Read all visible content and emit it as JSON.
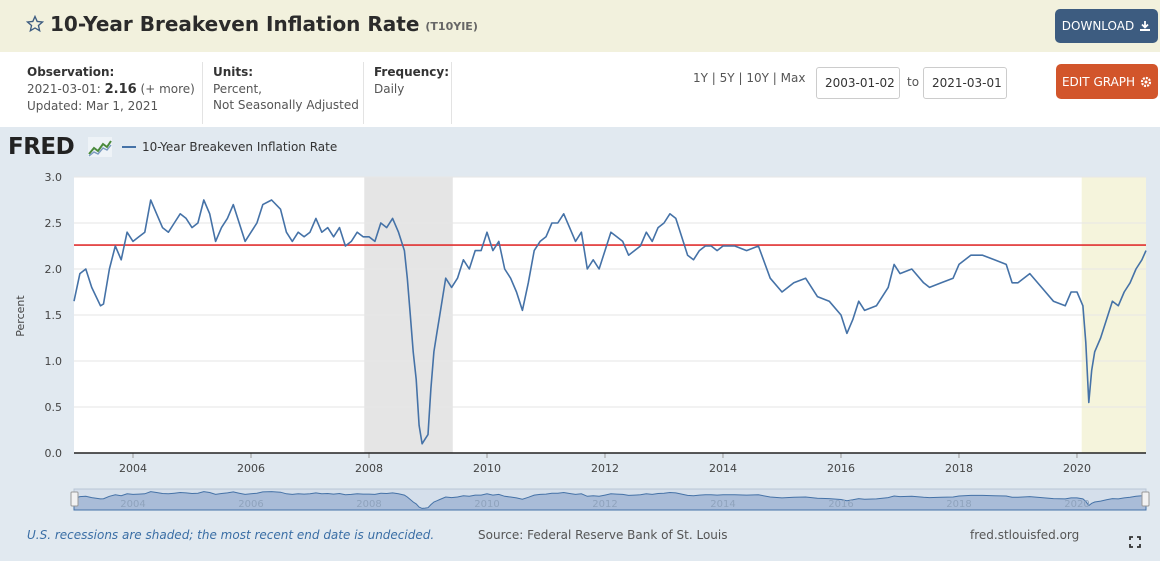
{
  "header": {
    "title": "10-Year Breakeven Inflation Rate",
    "series_id": "(T10YIE)",
    "download_label": "DOWNLOAD"
  },
  "meta": {
    "observation_label": "Observation:",
    "observation_date": "2021-03-01:",
    "observation_value": "2.16",
    "observation_more": "(+ more)",
    "updated": "Updated: Mar 1, 2021",
    "units_label": "Units:",
    "units_line1": "Percent,",
    "units_line2": "Not Seasonally Adjusted",
    "frequency_label": "Frequency:",
    "frequency_value": "Daily"
  },
  "controls": {
    "range_1y": "1Y",
    "range_5y": "5Y",
    "range_10y": "10Y",
    "range_max": "Max",
    "sep": "|",
    "start_date": "2003-01-02",
    "to_label": "to",
    "end_date": "2021-03-01",
    "edit_label": "EDIT GRAPH"
  },
  "logo_text": "FRED",
  "footer": {
    "recession_note": "U.S. recessions are shaded; the most recent end date is undecided.",
    "source": "Source: Federal Reserve Bank of St. Louis",
    "site": "fred.stlouisfed.org"
  },
  "colors": {
    "series": "#4572a7",
    "reference_line": "#e03030",
    "recession": "#e5e5e5",
    "recession_recent": "#f5f4dc"
  },
  "chart_data": {
    "type": "line",
    "title": "",
    "ylabel": "Percent",
    "xlabel": "",
    "ylim": [
      0,
      3.0
    ],
    "xlim": [
      2003.0,
      2021.17
    ],
    "y_ticks": [
      "0.0",
      "0.5",
      "1.0",
      "1.5",
      "2.0",
      "2.5",
      "3.0"
    ],
    "x_ticks": [
      "2004",
      "2006",
      "2008",
      "2010",
      "2012",
      "2014",
      "2016",
      "2018",
      "2020"
    ],
    "grid": true,
    "legend": "top-left",
    "reference_line": 2.26,
    "recessions": [
      {
        "start": 2007.92,
        "end": 2009.42
      },
      {
        "start": 2020.08,
        "end": 2021.17
      }
    ],
    "series": [
      {
        "name": "10-Year Breakeven Inflation Rate",
        "x": [
          2003.0,
          2003.1,
          2003.2,
          2003.3,
          2003.45,
          2003.5,
          2003.6,
          2003.7,
          2003.8,
          2003.9,
          2004.0,
          2004.1,
          2004.2,
          2004.3,
          2004.4,
          2004.5,
          2004.6,
          2004.7,
          2004.8,
          2004.9,
          2005.0,
          2005.1,
          2005.2,
          2005.3,
          2005.4,
          2005.5,
          2005.6,
          2005.7,
          2005.8,
          2005.9,
          2006.0,
          2006.1,
          2006.2,
          2006.35,
          2006.5,
          2006.6,
          2006.7,
          2006.8,
          2006.9,
          2007.0,
          2007.1,
          2007.2,
          2007.3,
          2007.4,
          2007.5,
          2007.6,
          2007.7,
          2007.8,
          2007.9,
          2008.0,
          2008.1,
          2008.2,
          2008.3,
          2008.4,
          2008.5,
          2008.6,
          2008.65,
          2008.7,
          2008.75,
          2008.8,
          2008.85,
          2008.9,
          2008.95,
          2009.0,
          2009.05,
          2009.1,
          2009.15,
          2009.2,
          2009.3,
          2009.4,
          2009.5,
          2009.6,
          2009.7,
          2009.8,
          2009.9,
          2010.0,
          2010.1,
          2010.2,
          2010.3,
          2010.4,
          2010.5,
          2010.6,
          2010.7,
          2010.8,
          2010.9,
          2011.0,
          2011.1,
          2011.2,
          2011.3,
          2011.4,
          2011.5,
          2011.6,
          2011.7,
          2011.8,
          2011.9,
          2012.0,
          2012.1,
          2012.2,
          2012.3,
          2012.4,
          2012.5,
          2012.6,
          2012.7,
          2012.8,
          2012.9,
          2013.0,
          2013.1,
          2013.2,
          2013.3,
          2013.4,
          2013.5,
          2013.6,
          2013.7,
          2013.8,
          2013.9,
          2014.0,
          2014.2,
          2014.4,
          2014.6,
          2014.8,
          2015.0,
          2015.2,
          2015.4,
          2015.6,
          2015.8,
          2016.0,
          2016.1,
          2016.2,
          2016.3,
          2016.4,
          2016.6,
          2016.8,
          2016.9,
          2017.0,
          2017.2,
          2017.4,
          2017.5,
          2017.7,
          2017.9,
          2018.0,
          2018.2,
          2018.4,
          2018.6,
          2018.8,
          2018.9,
          2019.0,
          2019.2,
          2019.4,
          2019.6,
          2019.8,
          2019.9,
          2020.0,
          2020.1,
          2020.15,
          2020.2,
          2020.25,
          2020.3,
          2020.4,
          2020.5,
          2020.6,
          2020.7,
          2020.8,
          2020.9,
          2021.0,
          2021.1,
          2021.17
        ],
        "values": [
          1.65,
          1.95,
          2.0,
          1.8,
          1.6,
          1.62,
          2.0,
          2.25,
          2.1,
          2.4,
          2.3,
          2.35,
          2.4,
          2.75,
          2.6,
          2.45,
          2.4,
          2.5,
          2.6,
          2.55,
          2.45,
          2.5,
          2.75,
          2.6,
          2.3,
          2.45,
          2.55,
          2.7,
          2.5,
          2.3,
          2.4,
          2.5,
          2.7,
          2.75,
          2.65,
          2.4,
          2.3,
          2.4,
          2.35,
          2.4,
          2.55,
          2.4,
          2.45,
          2.35,
          2.45,
          2.25,
          2.3,
          2.4,
          2.35,
          2.35,
          2.3,
          2.5,
          2.45,
          2.55,
          2.4,
          2.2,
          1.9,
          1.5,
          1.1,
          0.8,
          0.3,
          0.1,
          0.15,
          0.2,
          0.7,
          1.1,
          1.3,
          1.5,
          1.9,
          1.8,
          1.9,
          2.1,
          2.0,
          2.2,
          2.2,
          2.4,
          2.2,
          2.3,
          2.0,
          1.9,
          1.75,
          1.55,
          1.85,
          2.2,
          2.3,
          2.35,
          2.5,
          2.5,
          2.6,
          2.45,
          2.3,
          2.4,
          2.0,
          2.1,
          2.0,
          2.2,
          2.4,
          2.35,
          2.3,
          2.15,
          2.2,
          2.25,
          2.4,
          2.3,
          2.45,
          2.5,
          2.6,
          2.55,
          2.35,
          2.15,
          2.1,
          2.2,
          2.25,
          2.25,
          2.2,
          2.25,
          2.25,
          2.2,
          2.25,
          1.9,
          1.75,
          1.85,
          1.9,
          1.7,
          1.65,
          1.5,
          1.3,
          1.45,
          1.65,
          1.55,
          1.6,
          1.8,
          2.05,
          1.95,
          2.0,
          1.85,
          1.8,
          1.85,
          1.9,
          2.05,
          2.15,
          2.15,
          2.1,
          2.05,
          1.85,
          1.85,
          1.95,
          1.8,
          1.65,
          1.6,
          1.75,
          1.75,
          1.6,
          1.2,
          0.55,
          0.9,
          1.1,
          1.25,
          1.45,
          1.65,
          1.6,
          1.75,
          1.85,
          2.0,
          2.1,
          2.2
        ]
      }
    ]
  }
}
